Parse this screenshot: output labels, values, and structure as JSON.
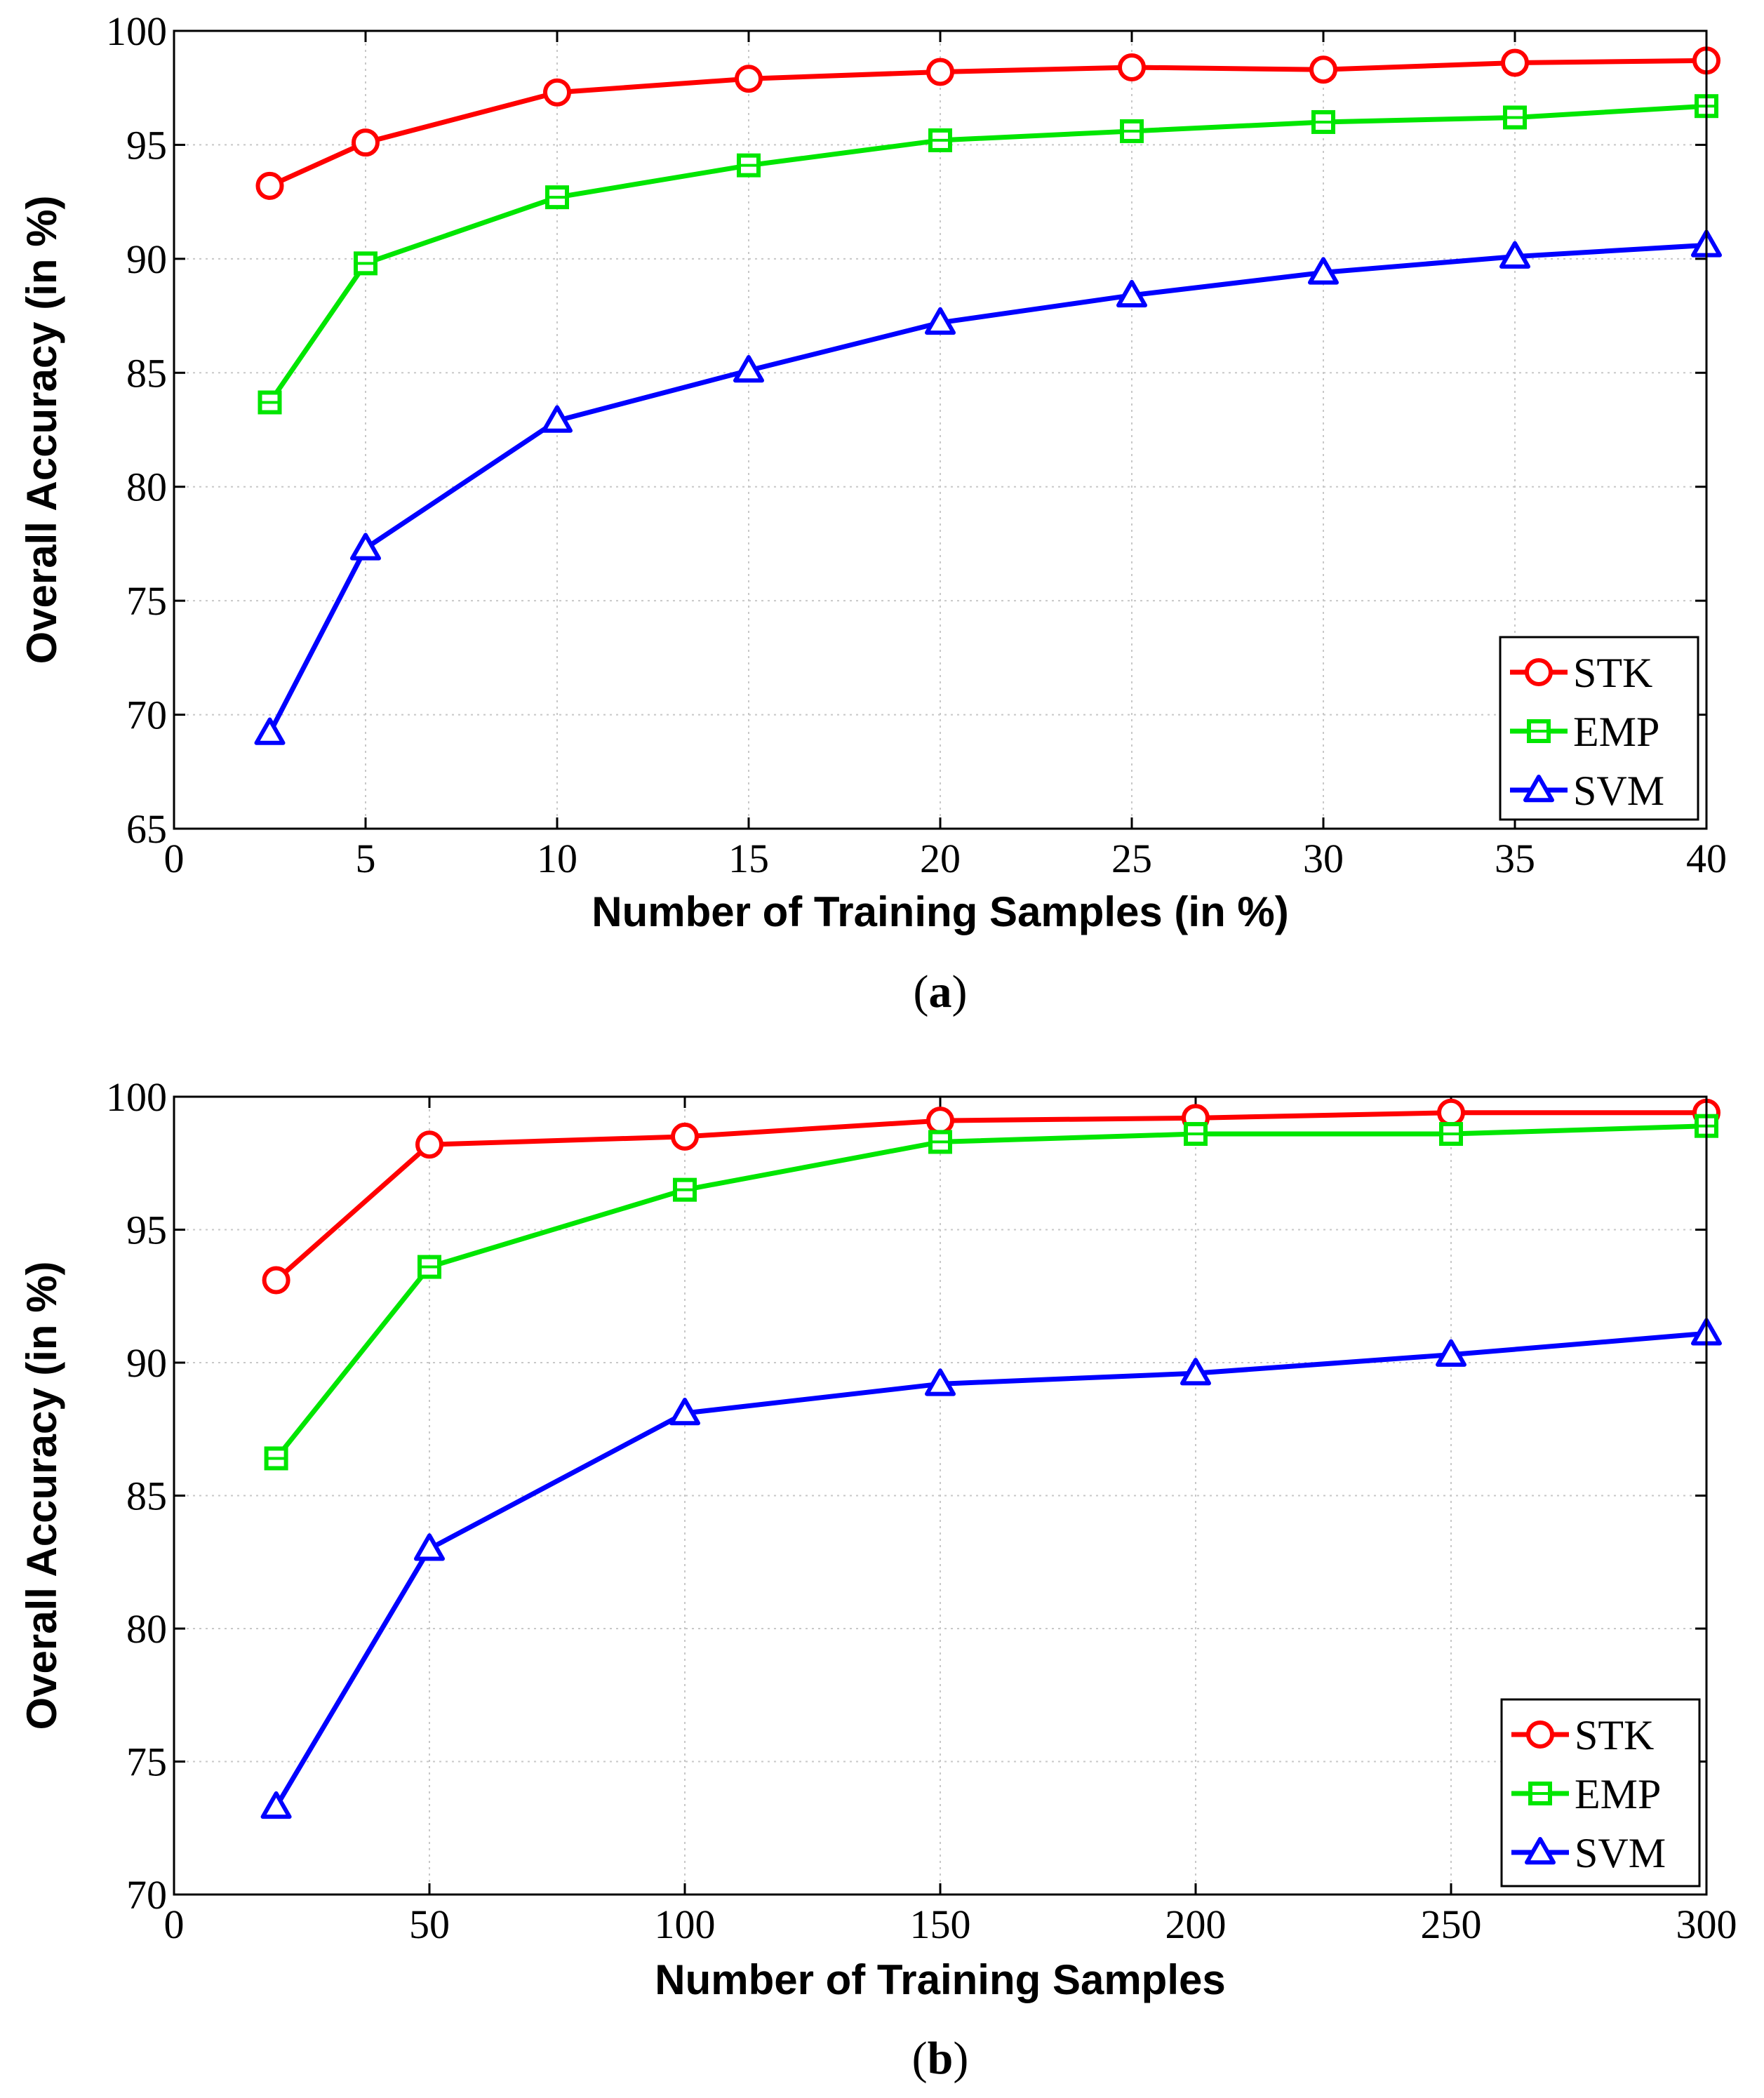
{
  "chart_data": [
    {
      "type": "line",
      "x": [
        2.5,
        5,
        10,
        15,
        20,
        25,
        30,
        35,
        40
      ],
      "series": [
        {
          "name": "STK",
          "color": "#ff0000",
          "marker": "circle",
          "values": [
            93.2,
            95.1,
            97.3,
            97.9,
            98.2,
            98.4,
            98.3,
            98.6,
            98.7
          ]
        },
        {
          "name": "EMP",
          "color": "#00e600",
          "marker": "square",
          "values": [
            83.7,
            89.8,
            92.7,
            94.1,
            95.2,
            95.6,
            96.0,
            96.2,
            96.7
          ]
        },
        {
          "name": "SVM",
          "color": "#0000ff",
          "marker": "triangle",
          "values": [
            69.2,
            77.3,
            82.9,
            85.1,
            87.2,
            88.4,
            89.4,
            90.1,
            90.6
          ]
        }
      ],
      "xlim": [
        0,
        40
      ],
      "ylim": [
        65,
        100
      ],
      "xticks": [
        0,
        5,
        10,
        15,
        20,
        25,
        30,
        35,
        40
      ],
      "yticks": [
        65,
        70,
        75,
        80,
        85,
        90,
        95,
        100
      ],
      "xlabel": "Number of Training Samples (in %)",
      "ylabel": "Overall Accuracy (in %)",
      "caption_letter": "a",
      "grid": true,
      "legend": "bottom-right"
    },
    {
      "type": "line",
      "x": [
        20,
        50,
        100,
        150,
        200,
        250,
        300
      ],
      "series": [
        {
          "name": "STK",
          "color": "#ff0000",
          "marker": "circle",
          "values": [
            93.1,
            98.2,
            98.5,
            99.1,
            99.2,
            99.4,
            99.4
          ]
        },
        {
          "name": "EMP",
          "color": "#00e600",
          "marker": "square",
          "values": [
            86.4,
            93.6,
            96.5,
            98.3,
            98.6,
            98.6,
            98.9
          ]
        },
        {
          "name": "SVM",
          "color": "#0000ff",
          "marker": "triangle",
          "values": [
            73.3,
            83.0,
            88.1,
            89.2,
            89.6,
            90.3,
            91.1
          ]
        }
      ],
      "xlim": [
        0,
        300
      ],
      "ylim": [
        70,
        100
      ],
      "xticks": [
        0,
        50,
        100,
        150,
        200,
        250,
        300
      ],
      "yticks": [
        70,
        75,
        80,
        85,
        90,
        95,
        100
      ],
      "xlabel": "Number of Training Samples",
      "ylabel": "Overall Accuracy (in %)",
      "caption_letter": "b",
      "grid": true,
      "legend": "bottom-right"
    }
  ]
}
